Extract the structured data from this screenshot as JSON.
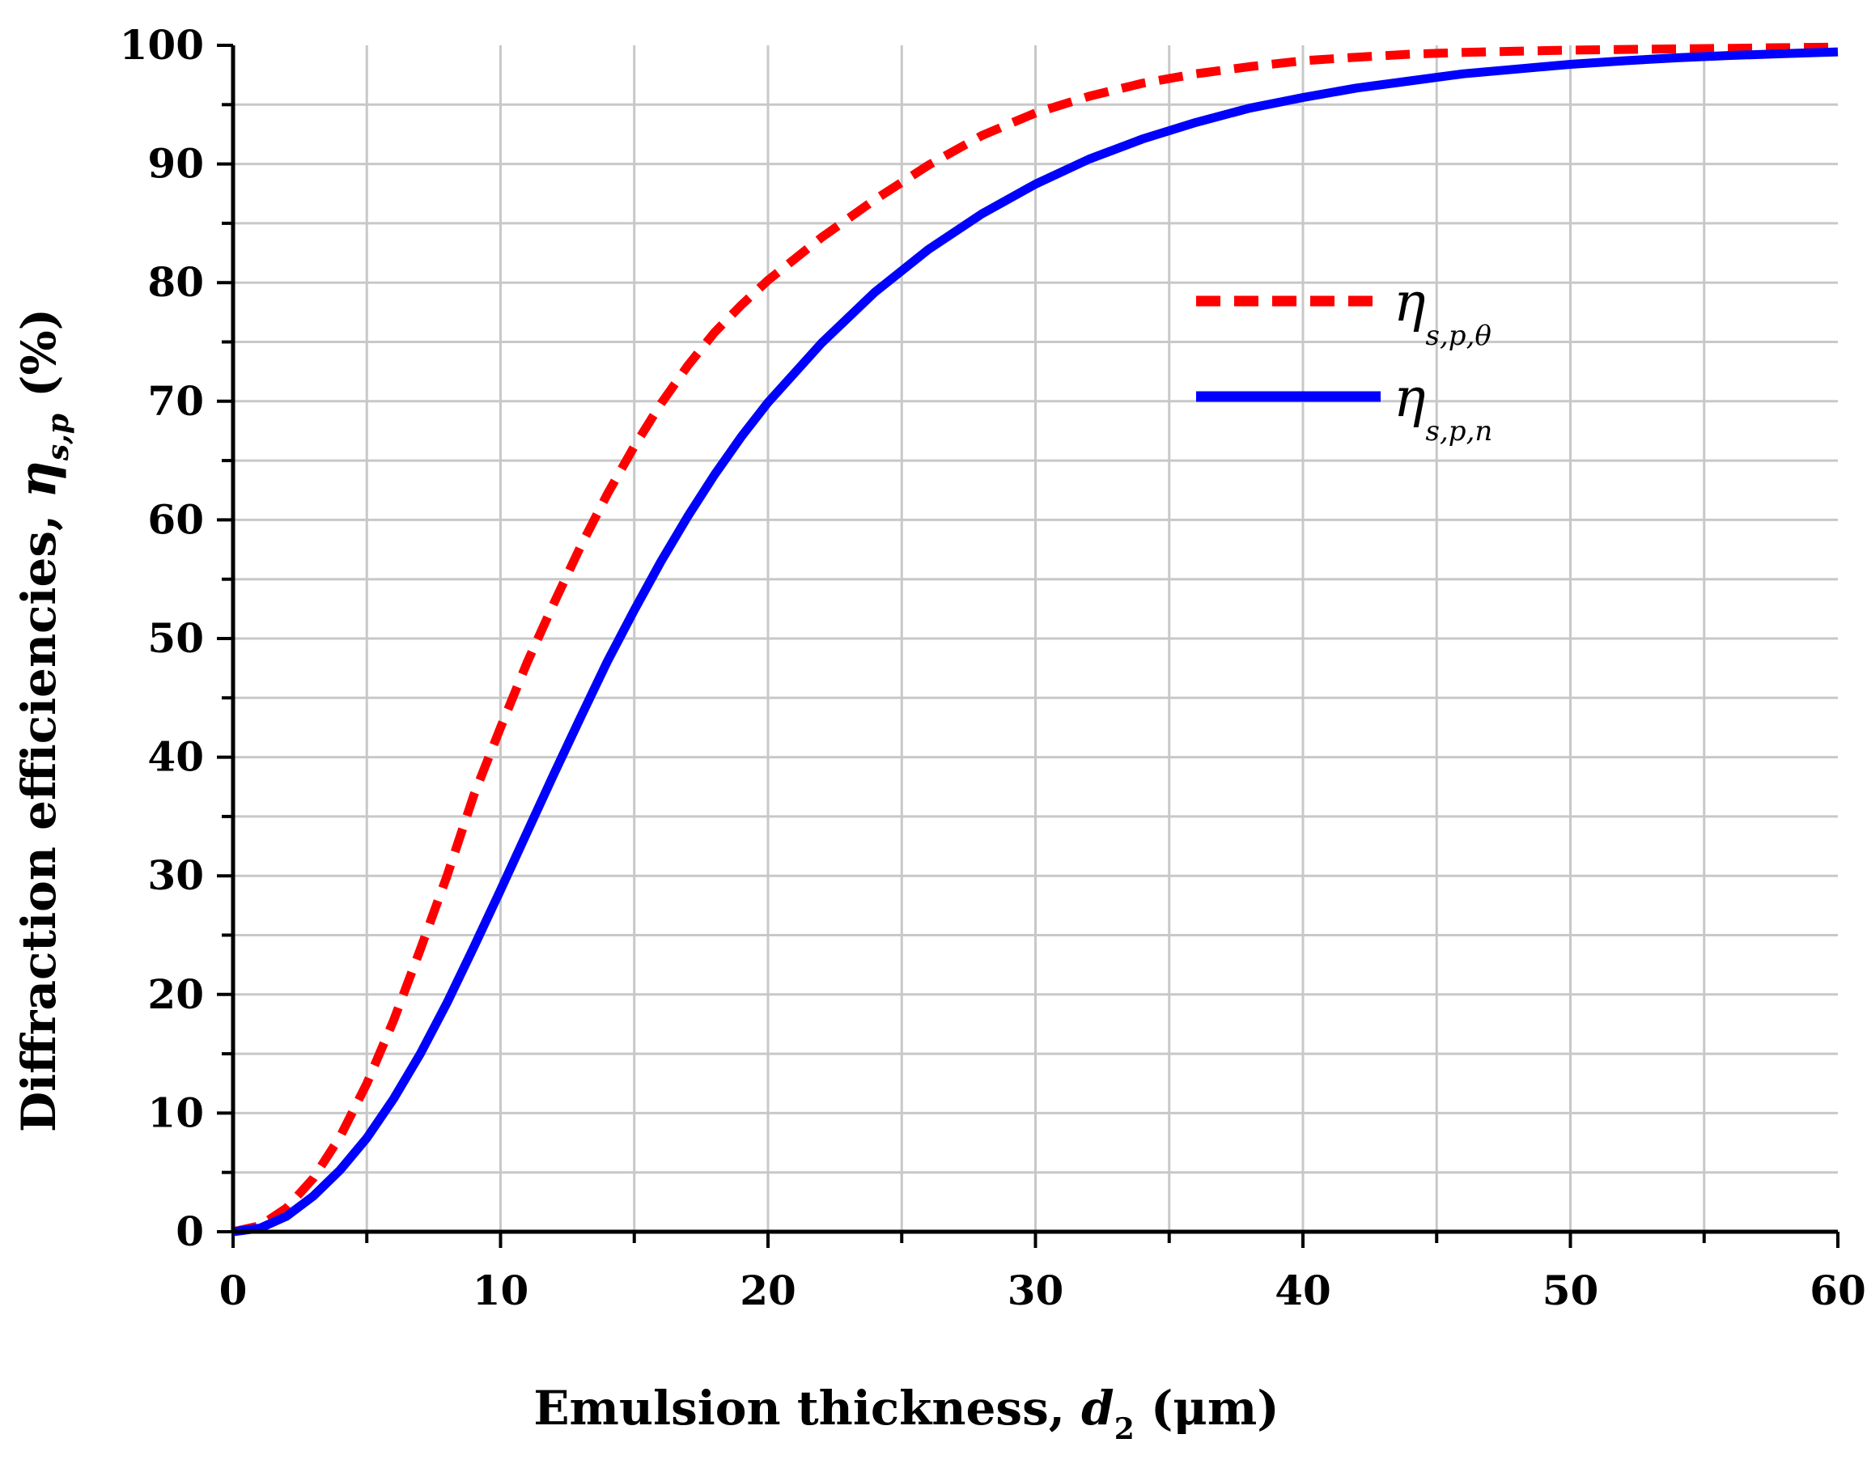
{
  "chart_data": {
    "type": "line",
    "title": "",
    "xlabel": {
      "prefix": "Emulsion thickness, ",
      "var": "d",
      "sub": "2",
      "suffix": " (μm)"
    },
    "ylabel": {
      "prefix": "Diffraction efficiencies, ",
      "var": "η",
      "sub": "s,p",
      "suffix": " (%)"
    },
    "xlim": [
      0,
      60
    ],
    "ylim": [
      0,
      100
    ],
    "xticks": [
      "0",
      "10",
      "20",
      "30",
      "40",
      "50",
      "60"
    ],
    "yticks": [
      "0",
      "10",
      "20",
      "30",
      "40",
      "50",
      "60",
      "70",
      "80",
      "90",
      "100"
    ],
    "grid": true,
    "legend_position": "upper-right",
    "series": [
      {
        "name": "η_s,p,θ",
        "legend_symbol": "η",
        "legend_sub": "s,p,θ",
        "color": "#ff0000",
        "style": "dashed",
        "x": [
          0,
          1,
          2,
          3,
          4,
          5,
          6,
          7,
          8,
          9,
          10,
          11,
          12,
          13,
          14,
          15,
          16,
          17,
          18,
          19,
          20,
          22,
          24,
          26,
          28,
          30,
          32,
          34,
          36,
          38,
          40,
          42,
          44,
          46,
          48,
          50,
          52,
          54,
          56,
          58,
          60
        ],
        "y": [
          0,
          0.5,
          2.0,
          4.5,
          8.0,
          12.5,
          17.8,
          23.8,
          30.0,
          36.8,
          42.5,
          48.0,
          53.0,
          57.8,
          62.2,
          66.2,
          69.8,
          73.0,
          75.8,
          78.1,
          80.2,
          83.8,
          87.0,
          89.9,
          92.4,
          94.3,
          95.7,
          96.8,
          97.6,
          98.2,
          98.7,
          99.0,
          99.25,
          99.4,
          99.5,
          99.6,
          99.65,
          99.7,
          99.75,
          99.8,
          99.85
        ]
      },
      {
        "name": "η_s,p,n",
        "legend_symbol": "η",
        "legend_sub": "s,p,n",
        "color": "#0000ff",
        "style": "solid",
        "x": [
          0,
          1,
          2,
          3,
          4,
          5,
          6,
          7,
          8,
          9,
          10,
          11,
          12,
          13,
          14,
          15,
          16,
          17,
          18,
          19,
          20,
          22,
          24,
          26,
          28,
          30,
          32,
          34,
          36,
          38,
          40,
          42,
          44,
          46,
          48,
          50,
          52,
          54,
          56,
          58,
          60
        ],
        "y": [
          0,
          0.3,
          1.3,
          3.0,
          5.2,
          7.9,
          11.2,
          15.0,
          19.3,
          24.0,
          28.8,
          33.7,
          38.6,
          43.4,
          48.1,
          52.4,
          56.5,
          60.3,
          63.8,
          67.0,
          69.9,
          74.9,
          79.2,
          82.8,
          85.8,
          88.3,
          90.4,
          92.1,
          93.5,
          94.7,
          95.6,
          96.4,
          97.0,
          97.6,
          98.0,
          98.4,
          98.7,
          98.95,
          99.15,
          99.3,
          99.45
        ]
      }
    ]
  }
}
